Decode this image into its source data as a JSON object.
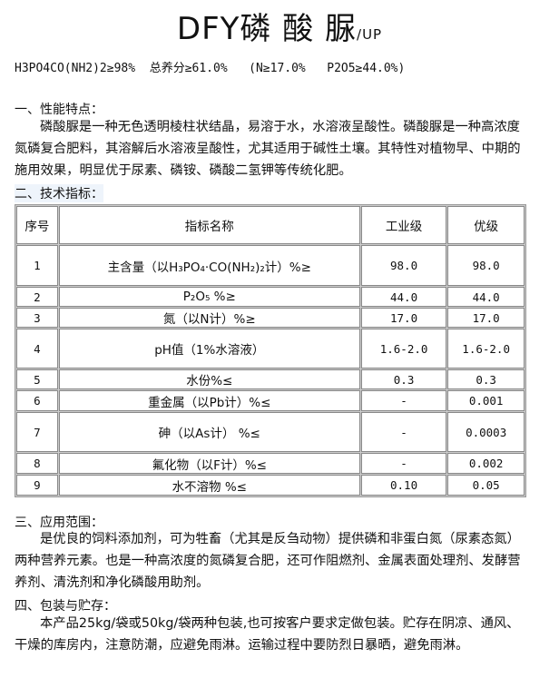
{
  "title": {
    "main": "DFY磷 酸 脲",
    "suffix": "/UP"
  },
  "formula": "H3PO4CO(NH2)2≥98%  总养分≥61.0%   (N≥17.0%   P2O5≥44.0%)",
  "sections": {
    "s1_heading": "一、性能特点：",
    "s1_text": "磷酸脲是一种无色透明棱柱状结晶，易溶于水，水溶液呈酸性。磷酸脲是一种高浓度氮磷复合肥料，其溶解后水溶液呈酸性，尤其适用于碱性土壤。其特性对植物早、中期的施用效果，明显优于尿素、磷铵、磷酸二氢钾等传统化肥。",
    "s2_heading": "二、技术指标：",
    "s3_heading": "三、应用范围：",
    "s3_text": "是优良的饲料添加剂，可为牲畜（尤其是反刍动物）提供磷和非蛋白氮（尿素态氮）两种营养元素。也是一种高浓度的氮磷复合肥，还可作阻燃剂、金属表面处理剂、发酵营养剂、清洗剂和净化磷酸用助剂。",
    "s4_heading": "四、包装与贮存：",
    "s4_text": "本产品25kg/袋或50kg/袋两种包装,也可按客户要求定做包装。贮存在阴凉、通风、干燥的库房内，注意防潮，应避免雨淋。运输过程中要防烈日暴晒，避免雨淋。"
  },
  "table": {
    "headers": [
      "序号",
      "指标名称",
      "工业级",
      "优级"
    ],
    "rows": [
      [
        "1",
        "主含量（以H₃PO₄·CO(NH₂)₂计）%≥",
        "98.0",
        "98.0"
      ],
      [
        "2",
        "P₂O₅  %≥",
        "44.0",
        "44.0"
      ],
      [
        "3",
        "氮（以N计）%≥",
        "17.0",
        "17.0"
      ],
      [
        "4",
        "pH值（1%水溶液）",
        "1.6-2.0",
        "1.6-2.0"
      ],
      [
        "5",
        "水份%≤",
        "0.3",
        "0.3"
      ],
      [
        "6",
        "重金属（以Pb计）%≤",
        "-",
        "0.001"
      ],
      [
        "7",
        "砷（以As计）  %≤",
        "-",
        "0.0003"
      ],
      [
        "8",
        "氟化物（以F计）%≤",
        "-",
        "0.002"
      ],
      [
        "9",
        "水不溶物  %≤",
        "0.10",
        "0.05"
      ]
    ]
  }
}
